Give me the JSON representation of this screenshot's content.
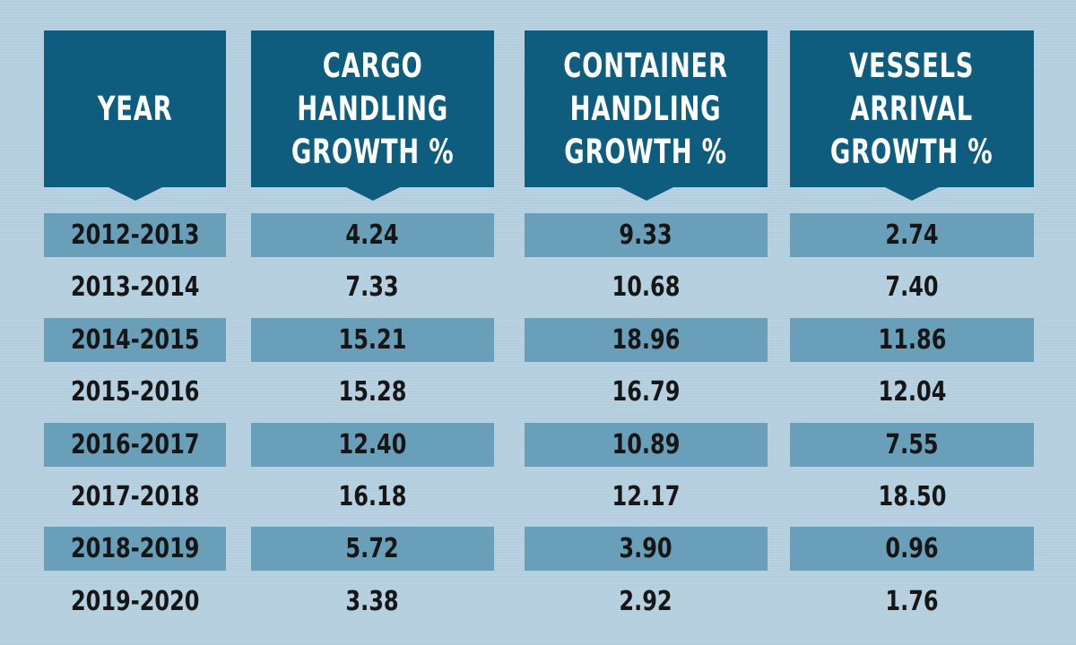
{
  "chart_data": {
    "type": "table",
    "columns": [
      "YEAR",
      "CARGO\nHANDLING\nGROWTH %",
      "CONTAINER\nHANDLING\nGROWTH %",
      "VESSELS\nARRIVAL\nGROWTH %"
    ],
    "rows": [
      [
        "2012-2013",
        "4.24",
        "9.33",
        "2.74"
      ],
      [
        "2013-2014",
        "7.33",
        "10.68",
        "7.40"
      ],
      [
        "2014-2015",
        "15.21",
        "18.96",
        "11.86"
      ],
      [
        "2015-2016",
        "15.28",
        "16.79",
        "12.04"
      ],
      [
        "2016-2017",
        "12.40",
        "10.89",
        "7.55"
      ],
      [
        "2017-2018",
        "16.18",
        "12.17",
        "18.50"
      ],
      [
        "2018-2019",
        "5.72",
        "3.90",
        "0.96"
      ],
      [
        "2019-2020",
        "3.38",
        "2.92",
        "1.76"
      ]
    ],
    "colors": {
      "background": "#b3cede",
      "header": "#0e5d7f",
      "header_text": "#ffffff",
      "band": "#6a9fb9",
      "cell_text": "#161616"
    }
  }
}
